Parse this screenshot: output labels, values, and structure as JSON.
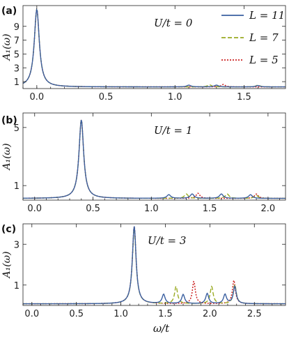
{
  "chart_data": [
    {
      "type": "line",
      "panel_label": "(a)",
      "annotation": "U/t = 0",
      "ylabel": "A₁(ω)",
      "xlabel": "",
      "xlim": [
        -0.1,
        1.8
      ],
      "ylim": [
        0,
        12
      ],
      "xticks": [
        "0.0",
        "0.5",
        "1.0",
        "1.5"
      ],
      "xtick_values": [
        0.0,
        0.5,
        1.0,
        1.5
      ],
      "yticks": [
        "1",
        "3",
        "5",
        "7",
        "9"
      ],
      "ytick_values": [
        1,
        3,
        5,
        7,
        9
      ],
      "show_xtick_labels": true,
      "series": [
        {
          "name": "L = 11",
          "peaks": [
            [
              0.0,
              11.2
            ],
            [
              1.1,
              0.25
            ],
            [
              1.3,
              0.25
            ],
            [
              1.6,
              0.2
            ]
          ]
        },
        {
          "name": "L = 7",
          "peaks": [
            [
              0.0,
              11.2
            ],
            [
              1.25,
              0.3
            ],
            [
              1.6,
              0.25
            ]
          ]
        },
        {
          "name": "L = 5",
          "peaks": [
            [
              0.0,
              11.2
            ],
            [
              1.35,
              0.35
            ]
          ]
        }
      ],
      "legend": {
        "placement": "top-right"
      }
    },
    {
      "type": "line",
      "panel_label": "(b)",
      "annotation": "U/t = 1",
      "ylabel": "A₁(ω)",
      "xlabel": "",
      "xlim": [
        -0.1,
        2.15
      ],
      "ylim": [
        0,
        6
      ],
      "xticks": [
        "0.0",
        "0.5",
        "1.0",
        "1.5",
        "2.0"
      ],
      "xtick_values": [
        0.0,
        0.5,
        1.0,
        1.5,
        2.0
      ],
      "yticks": [
        "1",
        "5"
      ],
      "ytick_values": [
        1,
        5
      ],
      "show_xtick_labels": true,
      "series": [
        {
          "name": "L = 11",
          "peaks": [
            [
              0.4,
              5.4
            ],
            [
              1.15,
              0.25
            ],
            [
              1.35,
              0.3
            ],
            [
              1.6,
              0.3
            ],
            [
              1.85,
              0.25
            ]
          ]
        },
        {
          "name": "L = 7",
          "peaks": [
            [
              0.4,
              5.4
            ],
            [
              1.3,
              0.3
            ],
            [
              1.65,
              0.3
            ],
            [
              1.9,
              0.2
            ]
          ]
        },
        {
          "name": "L = 5",
          "peaks": [
            [
              0.4,
              5.4
            ],
            [
              1.4,
              0.35
            ],
            [
              1.9,
              0.3
            ]
          ]
        }
      ]
    },
    {
      "type": "line",
      "panel_label": "(c)",
      "annotation": "U/t = 3",
      "ylabel": "A₁(ω)",
      "xlabel": "ω/t",
      "xlim": [
        -0.1,
        2.85
      ],
      "ylim": [
        0,
        4
      ],
      "xticks": [
        "0.0",
        "0.5",
        "1.0",
        "1.5",
        "2.0",
        "2.5"
      ],
      "xtick_values": [
        0.0,
        0.5,
        1.0,
        1.5,
        2.0,
        2.5
      ],
      "yticks": [
        "1",
        "3"
      ],
      "ytick_values": [
        1,
        3
      ],
      "show_xtick_labels": true,
      "series": [
        {
          "name": "L = 11",
          "peaks": [
            [
              1.15,
              3.8
            ],
            [
              1.48,
              0.45
            ],
            [
              1.7,
              0.45
            ],
            [
              1.97,
              0.5
            ],
            [
              2.17,
              0.45
            ],
            [
              2.28,
              0.85
            ]
          ]
        },
        {
          "name": "L = 7",
          "peaks": [
            [
              1.15,
              3.7
            ],
            [
              1.62,
              0.85
            ],
            [
              2.02,
              0.85
            ],
            [
              2.28,
              0.95
            ]
          ]
        },
        {
          "name": "L = 5",
          "peaks": [
            [
              1.15,
              3.8
            ],
            [
              1.82,
              1.1
            ],
            [
              2.27,
              1.15
            ]
          ]
        }
      ]
    }
  ],
  "legend": {
    "entries": [
      "L = 11",
      "L = 7",
      "L = 5"
    ],
    "colors": [
      "#3a5fa0",
      "#99aa22",
      "#cc2222"
    ],
    "styles": [
      "solid",
      "dashed",
      "dotted"
    ]
  }
}
